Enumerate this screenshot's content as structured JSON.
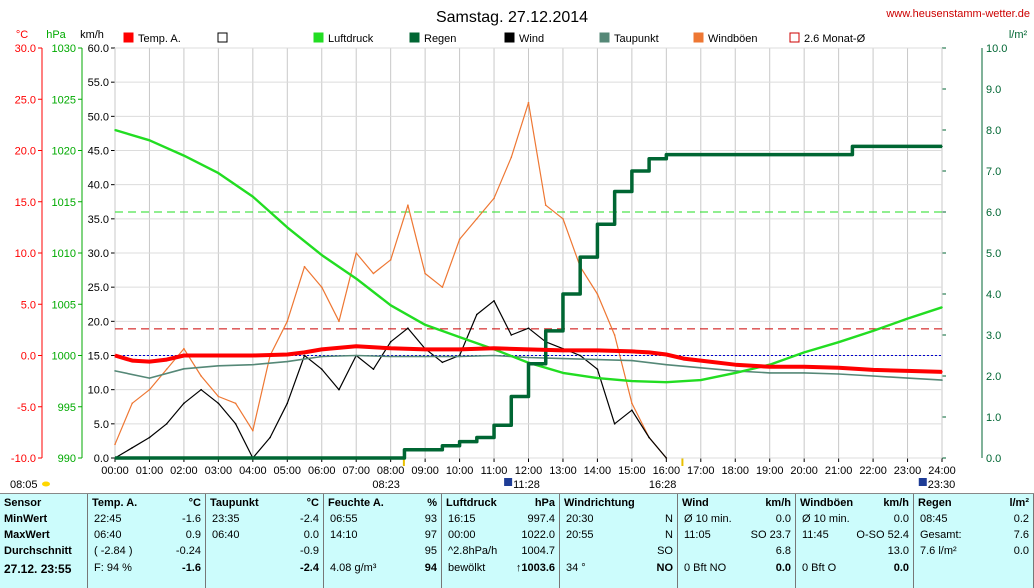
{
  "header": {
    "title": "Samstag. 27.12.2014",
    "website": "www.heusenstamm-wetter.de"
  },
  "axes": {
    "unit_temp": "°C",
    "unit_hpa": "hPa",
    "unit_kmh": "km/h",
    "unit_rain": "l/m²",
    "temp_ticks": [
      "30.0",
      "25.0",
      "20.0",
      "15.0",
      "10.0",
      "5.0",
      "0.0",
      "-5.0",
      "-10.0"
    ],
    "hpa_ticks": [
      "1030",
      "1025",
      "1020",
      "1015",
      "1010",
      "1005",
      "1000",
      "995",
      "990"
    ],
    "kmh_ticks": [
      "60.0",
      "55.0",
      "50.0",
      "45.0",
      "40.0",
      "35.0",
      "30.0",
      "25.0",
      "20.0",
      "15.0",
      "10.0",
      "5.0",
      "0.0"
    ],
    "rain_ticks": [
      "10.0",
      "9.0",
      "8.0",
      "7.0",
      "6.0",
      "5.0",
      "4.0",
      "3.0",
      "2.0",
      "1.0",
      "0.0"
    ],
    "time_ticks": [
      "00:00",
      "01:00",
      "02:00",
      "03:00",
      "04:00",
      "05:00",
      "06:00",
      "07:00",
      "08:00",
      "09:00",
      "10:00",
      "11:00",
      "12:00",
      "13:00",
      "14:00",
      "15:00",
      "16:00",
      "17:00",
      "18:00",
      "19:00",
      "20:00",
      "21:00",
      "22:00",
      "23:00",
      "24:00"
    ]
  },
  "markers": {
    "sunrise1": "08:05",
    "sunrise2": "08:23",
    "noon": "11:28",
    "sunset": "16:28",
    "end": "23:30"
  },
  "legend": [
    {
      "label": "Temp. A.",
      "color": "#ff0000",
      "filled": true
    },
    {
      "label": "",
      "color": "#000000",
      "filled": false
    },
    {
      "label": "Luftdruck",
      "color": "#22dd22",
      "filled": true
    },
    {
      "label": "Regen",
      "color": "#006633",
      "filled": true
    },
    {
      "label": "Wind",
      "color": "#000000",
      "filled": true
    },
    {
      "label": "Taupunkt",
      "color": "#558877",
      "filled": true
    },
    {
      "label": "Windböen",
      "color": "#ee7733",
      "filled": true
    },
    {
      "label": "2.6 Monat-Ø",
      "color": "#cc0000",
      "filled": false
    }
  ],
  "colors": {
    "temp": "#ff0000",
    "pressure": "#22dd22",
    "rain": "#006633",
    "wind": "#000000",
    "dew": "#558877",
    "gust": "#ee7733",
    "temp_axis": "#ff0000",
    "pressure_axis": "#00aa00",
    "rain_axis": "#006633",
    "panel_bg": "#ccfcfc"
  },
  "chart_data": {
    "type": "line",
    "title": "Samstag. 27.12.2014",
    "x_unit": "hour of day",
    "xlim": [
      0,
      24
    ],
    "temp_range": [
      -10,
      30
    ],
    "hpa_range": [
      990,
      1030
    ],
    "kmh_range": [
      0,
      60
    ],
    "rain_range": [
      0,
      10
    ],
    "reference_lines": {
      "monthly_avg_temp": 2.6,
      "pressure_ref": 1014,
      "blue_temp_ref": 0
    },
    "series": [
      {
        "name": "Temp. A.",
        "axis": "temp",
        "x": [
          0,
          0.5,
          1,
          1.5,
          2,
          3,
          4,
          5,
          5.5,
          6,
          7,
          7.5,
          8,
          9,
          10,
          11,
          12,
          13,
          14,
          15,
          15.5,
          16,
          16.5,
          17,
          18,
          19,
          20,
          21,
          22,
          23,
          24
        ],
        "y": [
          0.0,
          -0.5,
          -0.6,
          -0.4,
          0.0,
          0.0,
          0.0,
          0.1,
          0.3,
          0.6,
          0.9,
          0.8,
          0.7,
          0.6,
          0.6,
          0.7,
          0.6,
          0.5,
          0.5,
          0.4,
          0.3,
          0.1,
          -0.3,
          -0.5,
          -0.9,
          -1.1,
          -1.1,
          -1.2,
          -1.4,
          -1.5,
          -1.6
        ]
      },
      {
        "name": "Taupunkt",
        "axis": "temp",
        "x": [
          0,
          1,
          2,
          3,
          4,
          5,
          6,
          7,
          8,
          9,
          10,
          11,
          12,
          13,
          14,
          15,
          16,
          17,
          18,
          19,
          20,
          21,
          22,
          23,
          24
        ],
        "y": [
          -1.5,
          -2.2,
          -1.3,
          -1.0,
          -0.9,
          -0.6,
          -0.1,
          0.0,
          -0.1,
          -0.1,
          -0.1,
          0.0,
          -0.2,
          -0.3,
          -0.4,
          -0.5,
          -0.9,
          -1.2,
          -1.5,
          -1.7,
          -1.7,
          -1.8,
          -2.0,
          -2.2,
          -2.4
        ]
      },
      {
        "name": "Luftdruck",
        "axis": "hpa",
        "x": [
          0,
          1,
          2,
          3,
          4,
          5,
          6,
          7,
          8,
          9,
          10,
          11,
          12,
          13,
          14,
          15,
          16,
          17,
          18,
          19,
          20,
          21,
          22,
          23,
          24
        ],
        "y": [
          1022.0,
          1021.0,
          1019.5,
          1017.8,
          1015.5,
          1012.5,
          1009.8,
          1007.5,
          1004.9,
          1003.0,
          1001.8,
          1000.6,
          999.3,
          998.3,
          997.8,
          997.5,
          997.4,
          997.6,
          998.3,
          999.1,
          1000.3,
          1001.3,
          1002.4,
          1003.6,
          1004.7
        ]
      },
      {
        "name": "Regen",
        "axis": "rain",
        "x": [
          0,
          8.2,
          8.4,
          9.5,
          10,
          10.5,
          11,
          11.5,
          12,
          12.5,
          13,
          13.5,
          14,
          14.5,
          15,
          15.5,
          16,
          18,
          20,
          21.2,
          21.4,
          24
        ],
        "y": [
          0,
          0,
          0.2,
          0.3,
          0.4,
          0.5,
          0.8,
          1.5,
          2.3,
          3.1,
          4.0,
          4.9,
          5.7,
          6.5,
          7.0,
          7.3,
          7.4,
          7.4,
          7.4,
          7.4,
          7.6,
          7.6
        ]
      },
      {
        "name": "Wind",
        "axis": "kmh",
        "x": [
          0,
          0.5,
          1,
          1.5,
          2,
          2.5,
          3,
          3.5,
          4,
          4.5,
          5,
          5.5,
          6,
          6.5,
          7,
          7.5,
          8,
          8.5,
          9,
          9.5,
          10,
          10.5,
          11,
          11.5,
          12,
          12.5,
          13,
          13.5,
          14,
          14.5,
          15,
          15.5,
          16
        ],
        "y": [
          0,
          1.5,
          3,
          5,
          8,
          10,
          8,
          5,
          0,
          3,
          8,
          15,
          13,
          10,
          15,
          13,
          17,
          19,
          16,
          14,
          15,
          21,
          23,
          18,
          19,
          17,
          16,
          15,
          13,
          5,
          7,
          3,
          0
        ]
      },
      {
        "name": "Windböen",
        "axis": "kmh",
        "x": [
          0,
          0.5,
          1,
          1.5,
          2,
          2.5,
          3,
          3.5,
          4,
          4.5,
          5,
          5.5,
          6,
          6.5,
          7,
          7.5,
          8,
          8.5,
          9,
          9.5,
          10,
          10.5,
          11,
          11.5,
          12,
          12.5,
          13,
          13.5,
          14,
          14.5,
          15,
          15.5,
          16
        ],
        "y": [
          2,
          8,
          10,
          13,
          16,
          12,
          9,
          8,
          4,
          15,
          20,
          28,
          25,
          20,
          30,
          27,
          29,
          37,
          27,
          25,
          32,
          35,
          38,
          44,
          52,
          37,
          35,
          28,
          24,
          18,
          8,
          3,
          0
        ]
      }
    ]
  },
  "panel": {
    "sensor": {
      "header": "Sensor",
      "min": "MinWert",
      "max": "MaxWert",
      "avg": "Durchschnitt",
      "date": "27.12. 23:55"
    },
    "temp": {
      "header": "Temp. A.",
      "unit": "°C",
      "r1": [
        "22:45",
        "-1.6"
      ],
      "r2": [
        "06:40",
        "0.9"
      ],
      "r3": [
        "( -2.84 )",
        "-0.24"
      ],
      "r4": [
        "F: 94 %",
        "-1.6"
      ]
    },
    "dew": {
      "header": "Taupunkt",
      "unit": "°C",
      "r1": [
        "23:35",
        "-2.4"
      ],
      "r2": [
        "06:40",
        "0.0"
      ],
      "r3": [
        "",
        "-0.9"
      ],
      "r4": [
        "",
        "-2.4"
      ]
    },
    "hum": {
      "header": "Feuchte A.",
      "unit": "%",
      "r1": [
        "06:55",
        "93"
      ],
      "r2": [
        "14:10",
        "97"
      ],
      "r3": [
        "",
        "95"
      ],
      "r4": [
        "4.08 g/m³",
        "94"
      ]
    },
    "press": {
      "header": "Luftdruck",
      "unit": "hPa",
      "r1": [
        "16:15",
        "997.4"
      ],
      "r2": [
        "00:00",
        "1022.0"
      ],
      "r3": [
        "^2.8hPa/h",
        "1004.7"
      ],
      "r4": [
        "bewölkt",
        "↑1003.6"
      ]
    },
    "dir": {
      "header": "Windrichtung",
      "r1": [
        "20:30",
        "N"
      ],
      "r2": [
        "20:55",
        "N"
      ],
      "r3": [
        "",
        "SO"
      ],
      "r4": [
        "34 °",
        "NO"
      ]
    },
    "wind": {
      "header": "Wind",
      "unit": "km/h",
      "r1": [
        "Ø 10 min.",
        "0.0"
      ],
      "r2": [
        "11:05",
        "SO 23.7"
      ],
      "r3": [
        "",
        "6.8"
      ],
      "r4": [
        "0 Bft NO",
        "0.0"
      ]
    },
    "gust": {
      "header": "Windböen",
      "unit": "km/h",
      "r1": [
        "Ø 10 min.",
        "0.0"
      ],
      "r2": [
        "11:45",
        "O-SO 52.4"
      ],
      "r3": [
        "",
        "13.0"
      ],
      "r4": [
        "0 Bft O",
        "0.0"
      ]
    },
    "rain": {
      "header": "Regen",
      "unit": "l/m²",
      "r1": [
        "08:45",
        "0.2"
      ],
      "r2": [
        "Gesamt:",
        "7.6"
      ],
      "r3": [
        "7.6 l/m²",
        "0.0"
      ]
    }
  }
}
